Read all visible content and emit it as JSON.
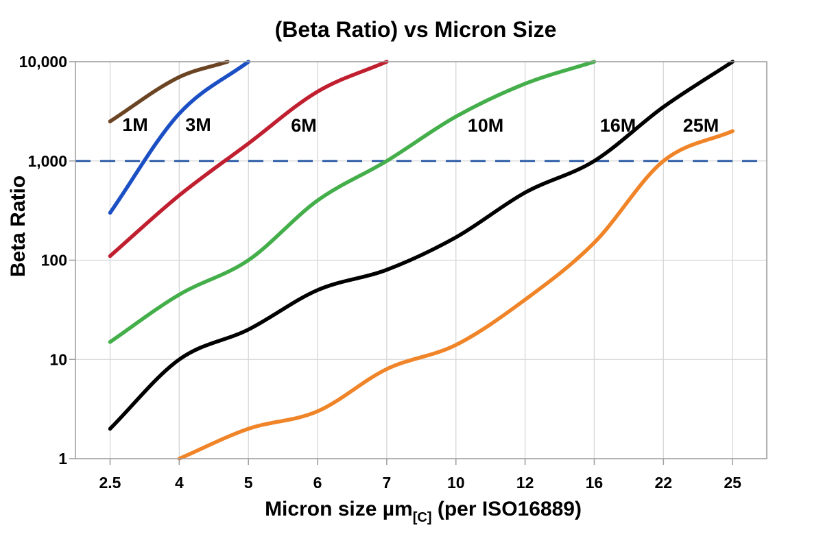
{
  "chart_data": {
    "type": "line",
    "title": "(Beta Ratio) vs Micron Size",
    "ylabel": "Beta Ratio",
    "xlabel": {
      "prefix": "Micron size µm",
      "subscript": "[C]",
      "suffix": " (per ISO16889)"
    },
    "x_axis": {
      "scale": "categorical",
      "categories": [
        2.5,
        4,
        5,
        6,
        7,
        10,
        12,
        16,
        22,
        25
      ],
      "tick_labels": [
        "2.5",
        "4",
        "5",
        "6",
        "7",
        "10",
        "12",
        "16",
        "22",
        "25"
      ]
    },
    "y_axis": {
      "scale": "log",
      "ylim": [
        1,
        10000
      ],
      "ticks": [
        1,
        10,
        100,
        1000,
        10000
      ],
      "tick_labels": [
        "1",
        "10",
        "100",
        "1,000",
        "10,000"
      ]
    },
    "grid": true,
    "legend_position": "inline-labels",
    "reference_line": {
      "value": 1000,
      "style": "dashed",
      "color": "#2F5FA8"
    },
    "colors": {
      "gridline": "#D6D6D6",
      "border": "#A0A0A0",
      "background": "#FFFFFF"
    },
    "series": [
      {
        "name": "1M",
        "color": "#6B4423",
        "points": [
          [
            2.5,
            2500
          ],
          [
            4,
            7000
          ],
          [
            4.7,
            10000
          ]
        ]
      },
      {
        "name": "3M",
        "color": "#1B4FC4",
        "points": [
          [
            2.5,
            300
          ],
          [
            4,
            3000
          ],
          [
            5,
            10000
          ]
        ]
      },
      {
        "name": "6M",
        "color": "#C01F30",
        "points": [
          [
            2.5,
            110
          ],
          [
            4,
            450
          ],
          [
            5,
            1500
          ],
          [
            6,
            5000
          ],
          [
            7,
            10000
          ]
        ]
      },
      {
        "name": "10M",
        "color": "#44AF4A",
        "points": [
          [
            2.5,
            15
          ],
          [
            4,
            45
          ],
          [
            5,
            100
          ],
          [
            6,
            400
          ],
          [
            7,
            1000
          ],
          [
            10,
            2800
          ],
          [
            12,
            6000
          ],
          [
            16,
            10000
          ]
        ]
      },
      {
        "name": "16M",
        "color": "#000000",
        "points": [
          [
            2.5,
            2
          ],
          [
            4,
            10
          ],
          [
            5,
            20
          ],
          [
            6,
            50
          ],
          [
            7,
            80
          ],
          [
            10,
            170
          ],
          [
            12,
            480
          ],
          [
            16,
            1000
          ],
          [
            22,
            3500
          ],
          [
            25,
            10000
          ]
        ]
      },
      {
        "name": "25M",
        "color": "#F08428",
        "points": [
          [
            4,
            1
          ],
          [
            5,
            2
          ],
          [
            6,
            3
          ],
          [
            7,
            8
          ],
          [
            10,
            14
          ],
          [
            12,
            40
          ],
          [
            16,
            150
          ],
          [
            22,
            1000
          ],
          [
            25,
            2000
          ]
        ]
      }
    ]
  }
}
